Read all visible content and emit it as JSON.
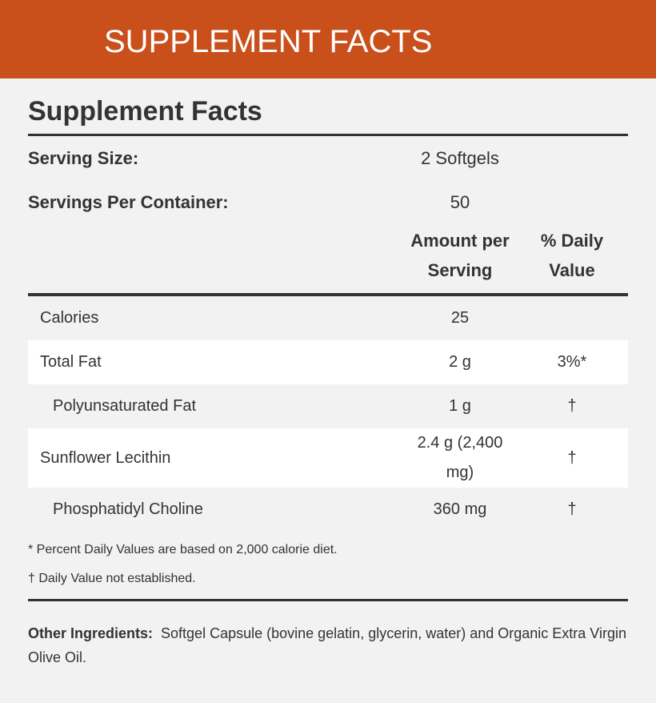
{
  "header": {
    "title": "SUPPLEMENT FACTS"
  },
  "facts": {
    "title": "Supplement Facts",
    "serving_size": {
      "label": "Serving Size:",
      "value": "2 Softgels"
    },
    "servings_per_container": {
      "label": "Servings Per Container:",
      "value": "50"
    }
  },
  "table": {
    "columns": [
      "Amount per Serving",
      "% Daily Value"
    ],
    "rows": [
      {
        "name": "Calories",
        "amount": "25"
      },
      {
        "name": "Total Fat",
        "amount": "2 g",
        "daily_value": "3%*"
      },
      {
        "name": "Polyunsaturated Fat",
        "amount": "1 g",
        "daily_value": "†",
        "indented": true
      },
      {
        "name": "Sunflower Lecithin",
        "amount": "2.4 g (2,400 mg)",
        "daily_value": "†"
      },
      {
        "name": "Phosphatidyl Choline",
        "amount": "360 mg",
        "daily_value": "†",
        "indented": true
      }
    ]
  },
  "footnotes": [
    "* Percent Daily Values are based on 2,000 calorie diet.",
    "† Daily Value not established."
  ],
  "other_ingredients": {
    "label": "Other Ingredients:",
    "text": "Softgel Capsule (bovine gelatin, glycerin, water) and Organic Extra Virgin Olive Oil."
  }
}
